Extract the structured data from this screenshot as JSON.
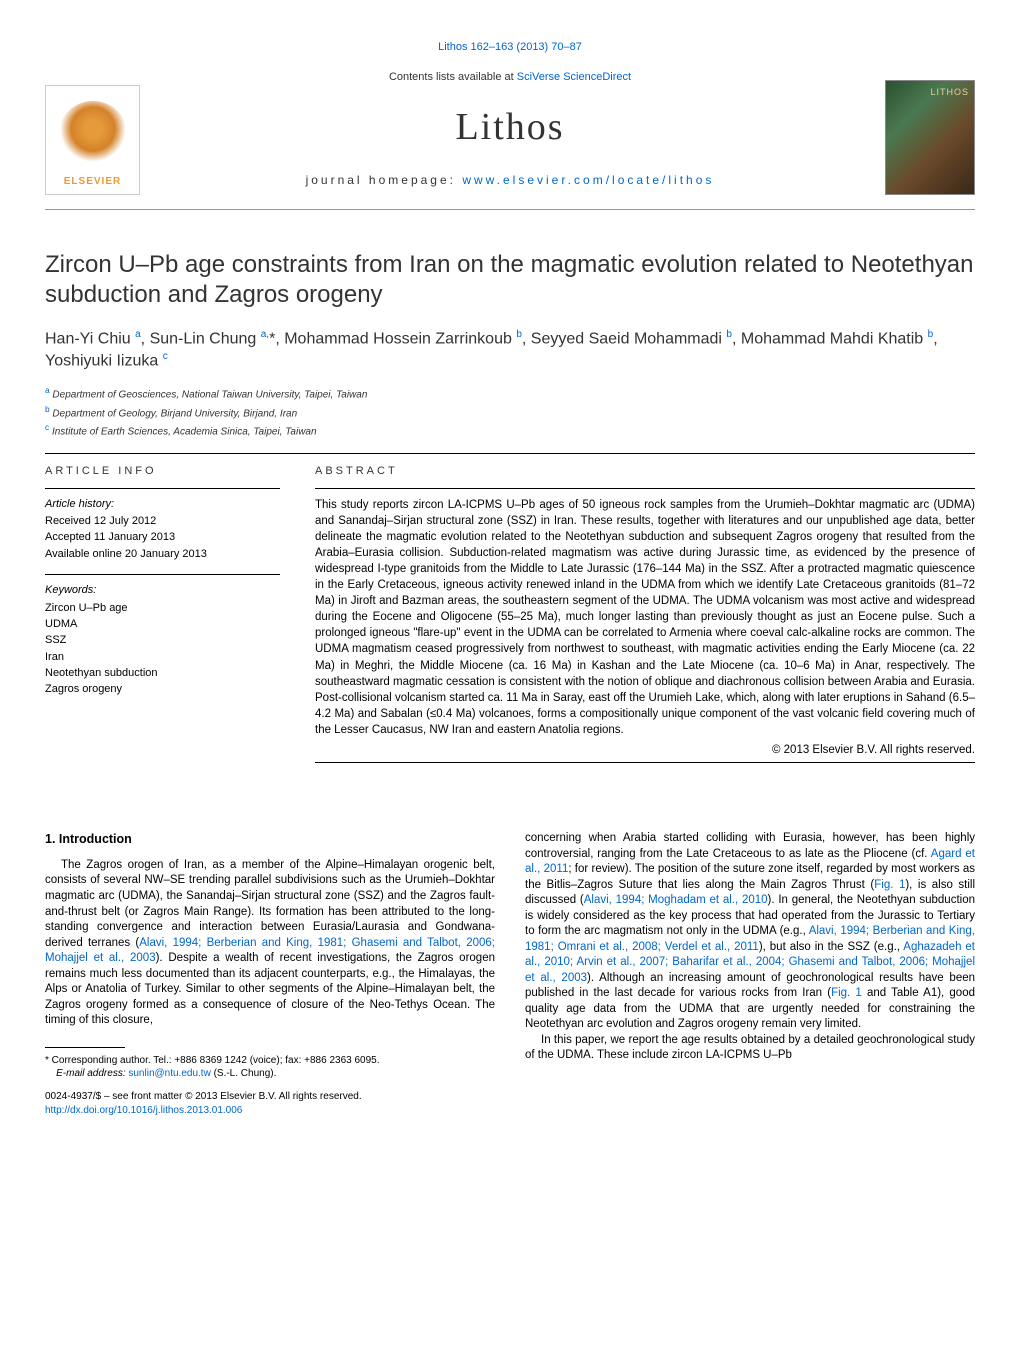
{
  "header": {
    "lithos_ref": "Lithos 162–163 (2013) 70–87",
    "contents_prefix": "Contents lists available at ",
    "contents_link": "SciVerse ScienceDirect",
    "journal_name": "Lithos",
    "homepage_prefix": "journal homepage: ",
    "homepage_link": "www.elsevier.com/locate/lithos",
    "elsevier_label": "ELSEVIER"
  },
  "article": {
    "title": "Zircon U–Pb age constraints from Iran on the magmatic evolution related to Neotethyan subduction and Zagros orogeny",
    "authors_html": "Han-Yi Chiu <sup>a</sup>, Sun-Lin Chung <sup>a,</sup>*, Mohammad Hossein Zarrinkoub <sup>b</sup>, Seyyed Saeid Mohammadi <sup>b</sup>, Mohammad Mahdi Khatib <sup>b</sup>, Yoshiyuki Iizuka <sup>c</sup>",
    "affiliations": [
      {
        "sup": "a",
        "text": "Department of Geosciences, National Taiwan University, Taipei, Taiwan"
      },
      {
        "sup": "b",
        "text": "Department of Geology, Birjand University, Birjand, Iran"
      },
      {
        "sup": "c",
        "text": "Institute of Earth Sciences, Academia Sinica, Taipei, Taiwan"
      }
    ]
  },
  "info": {
    "heading": "ARTICLE INFO",
    "history_label": "Article history:",
    "received": "Received 12 July 2012",
    "accepted": "Accepted 11 January 2013",
    "available": "Available online 20 January 2013",
    "keywords_label": "Keywords:",
    "keywords": [
      "Zircon U–Pb age",
      "UDMA",
      "SSZ",
      "Iran",
      "Neotethyan subduction",
      "Zagros orogeny"
    ]
  },
  "abstract": {
    "heading": "ABSTRACT",
    "text": "This study reports zircon LA-ICPMS U–Pb ages of 50 igneous rock samples from the Urumieh–Dokhtar magmatic arc (UDMA) and Sanandaj–Sirjan structural zone (SSZ) in Iran. These results, together with literatures and our unpublished age data, better delineate the magmatic evolution related to the Neotethyan subduction and subsequent Zagros orogeny that resulted from the Arabia–Eurasia collision. Subduction-related magmatism was active during Jurassic time, as evidenced by the presence of widespread I-type granitoids from the Middle to Late Jurassic (176–144 Ma) in the SSZ. After a protracted magmatic quiescence in the Early Cretaceous, igneous activity renewed inland in the UDMA from which we identify Late Cretaceous granitoids (81–72 Ma) in Jiroft and Bazman areas, the southeastern segment of the UDMA. The UDMA volcanism was most active and widespread during the Eocene and Oligocene (55–25 Ma), much longer lasting than previously thought as just an Eocene pulse. Such a prolonged igneous \"flare-up\" event in the UDMA can be correlated to Armenia where coeval calc-alkaline rocks are common. The UDMA magmatism ceased progressively from northwest to southeast, with magmatic activities ending the Early Miocene (ca. 22 Ma) in Meghri, the Middle Miocene (ca. 16 Ma) in Kashan and the Late Miocene (ca. 10–6 Ma) in Anar, respectively. The southeastward magmatic cessation is consistent with the notion of oblique and diachronous collision between Arabia and Eurasia. Post-collisional volcanism started ca. 11 Ma in Saray, east off the Urumieh Lake, which, along with later eruptions in Sahand (6.5–4.2 Ma) and Sabalan (≤0.4 Ma) volcanoes, forms a compositionally unique component of the vast volcanic field covering much of the Lesser Caucasus, NW Iran and eastern Anatolia regions.",
    "copyright": "© 2013 Elsevier B.V. All rights reserved."
  },
  "intro": {
    "heading": "1. Introduction",
    "col1_p1_pre": "The Zagros orogen of Iran, as a member of the Alpine–Himalayan orogenic belt, consists of several NW–SE trending parallel subdivisions such as the Urumieh–Dokhtar magmatic arc (UDMA), the Sanandaj–Sirjan structural zone (SSZ) and the Zagros fault-and-thrust belt (or Zagros Main Range). Its formation has been attributed to the long-standing convergence and interaction between Eurasia/Laurasia and Gondwana-derived terranes (",
    "col1_p1_link1": "Alavi, 1994; Berberian and King, 1981; Ghasemi and Talbot, 2006; Mohajjel et al., 2003",
    "col1_p1_post": "). Despite a wealth of recent investigations, the Zagros orogen remains much less documented than its adjacent counterparts, e.g., the Himalayas, the Alps or Anatolia of Turkey. Similar to other segments of the Alpine–Himalayan belt, the Zagros orogeny formed as a consequence of closure of the Neo-Tethys Ocean. The timing of this closure,",
    "col2_p1_a": "concerning when Arabia started colliding with Eurasia, however, has been highly controversial, ranging from the Late Cretaceous to as late as the Pliocene (cf. ",
    "col2_p1_link1": "Agard et al., 2011",
    "col2_p1_b": "; for review). The position of the suture zone itself, regarded by most workers as the Bitlis–Zagros Suture that lies along the Main Zagros Thrust (",
    "col2_p1_link2": "Fig. 1",
    "col2_p1_c": "), is also still discussed (",
    "col2_p1_link3": "Alavi, 1994; Moghadam et al., 2010",
    "col2_p1_d": "). In general, the Neotethyan subduction is widely considered as the key process that had operated from the Jurassic to Tertiary to form the arc magmatism not only in the UDMA (e.g., ",
    "col2_p1_link4": "Alavi, 1994; Berberian and King, 1981; Omrani et al., 2008; Verdel et al., 2011",
    "col2_p1_e": "), but also in the SSZ (e.g., ",
    "col2_p1_link5": "Aghazadeh et al., 2010; Arvin et al., 2007; Baharifar et al., 2004; Ghasemi and Talbot, 2006; Mohajjel et al., 2003",
    "col2_p1_f": "). Although an increasing amount of geochronological results have been published in the last decade for various rocks from Iran (",
    "col2_p1_link6": "Fig. 1",
    "col2_p1_g": " and Table A1), good quality age data from the UDMA that are urgently needed for constraining the Neotethyan arc evolution and Zagros orogeny remain very limited.",
    "col2_p2": "In this paper, we report the age results obtained by a detailed geochronological study of the UDMA. These include zircon LA-ICPMS U–Pb"
  },
  "footnote": {
    "corr_prefix": "* Corresponding author. Tel.: +886 8369 1242 (voice); fax: +886 2363 6095.",
    "email_label": "E-mail address: ",
    "email": "sunlin@ntu.edu.tw",
    "email_suffix": " (S.-L. Chung)."
  },
  "footer": {
    "line1": "0024-4937/$ – see front matter © 2013 Elsevier B.V. All rights reserved.",
    "doi": "http://dx.doi.org/10.1016/j.lithos.2013.01.006"
  }
}
